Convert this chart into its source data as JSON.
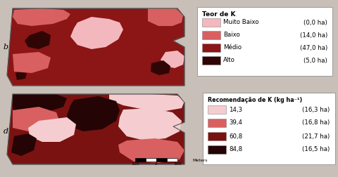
{
  "fig_bg": "#c8bfb8",
  "label_b": "b",
  "label_d": "d",
  "legend1_title": "Teor de K",
  "legend1_entries": [
    {
      "label": "Muito Baixo",
      "ha": "(0,0 ha)",
      "color": "#f2b8be"
    },
    {
      "label": "Baixo",
      "ha": "(14,0 ha)",
      "color": "#d96060"
    },
    {
      "label": "Médio",
      "ha": "(47,0 ha)",
      "color": "#8c1515"
    },
    {
      "label": "Alto",
      "ha": "(5,0 ha)",
      "color": "#300505"
    }
  ],
  "legend2_title": "Recomendação de K (kg ha⁻¹)",
  "legend2_entries": [
    {
      "label": "14,3",
      "ha": "(16,3 ha)",
      "color": "#f5cdd0"
    },
    {
      "label": "39,4",
      "ha": "(16,8 ha)",
      "color": "#d96060"
    },
    {
      "label": "60,8",
      "ha": "(21,7 ha)",
      "color": "#7a1212"
    },
    {
      "label": "84,8",
      "ha": "(16,5 ha)",
      "color": "#240404"
    }
  ]
}
